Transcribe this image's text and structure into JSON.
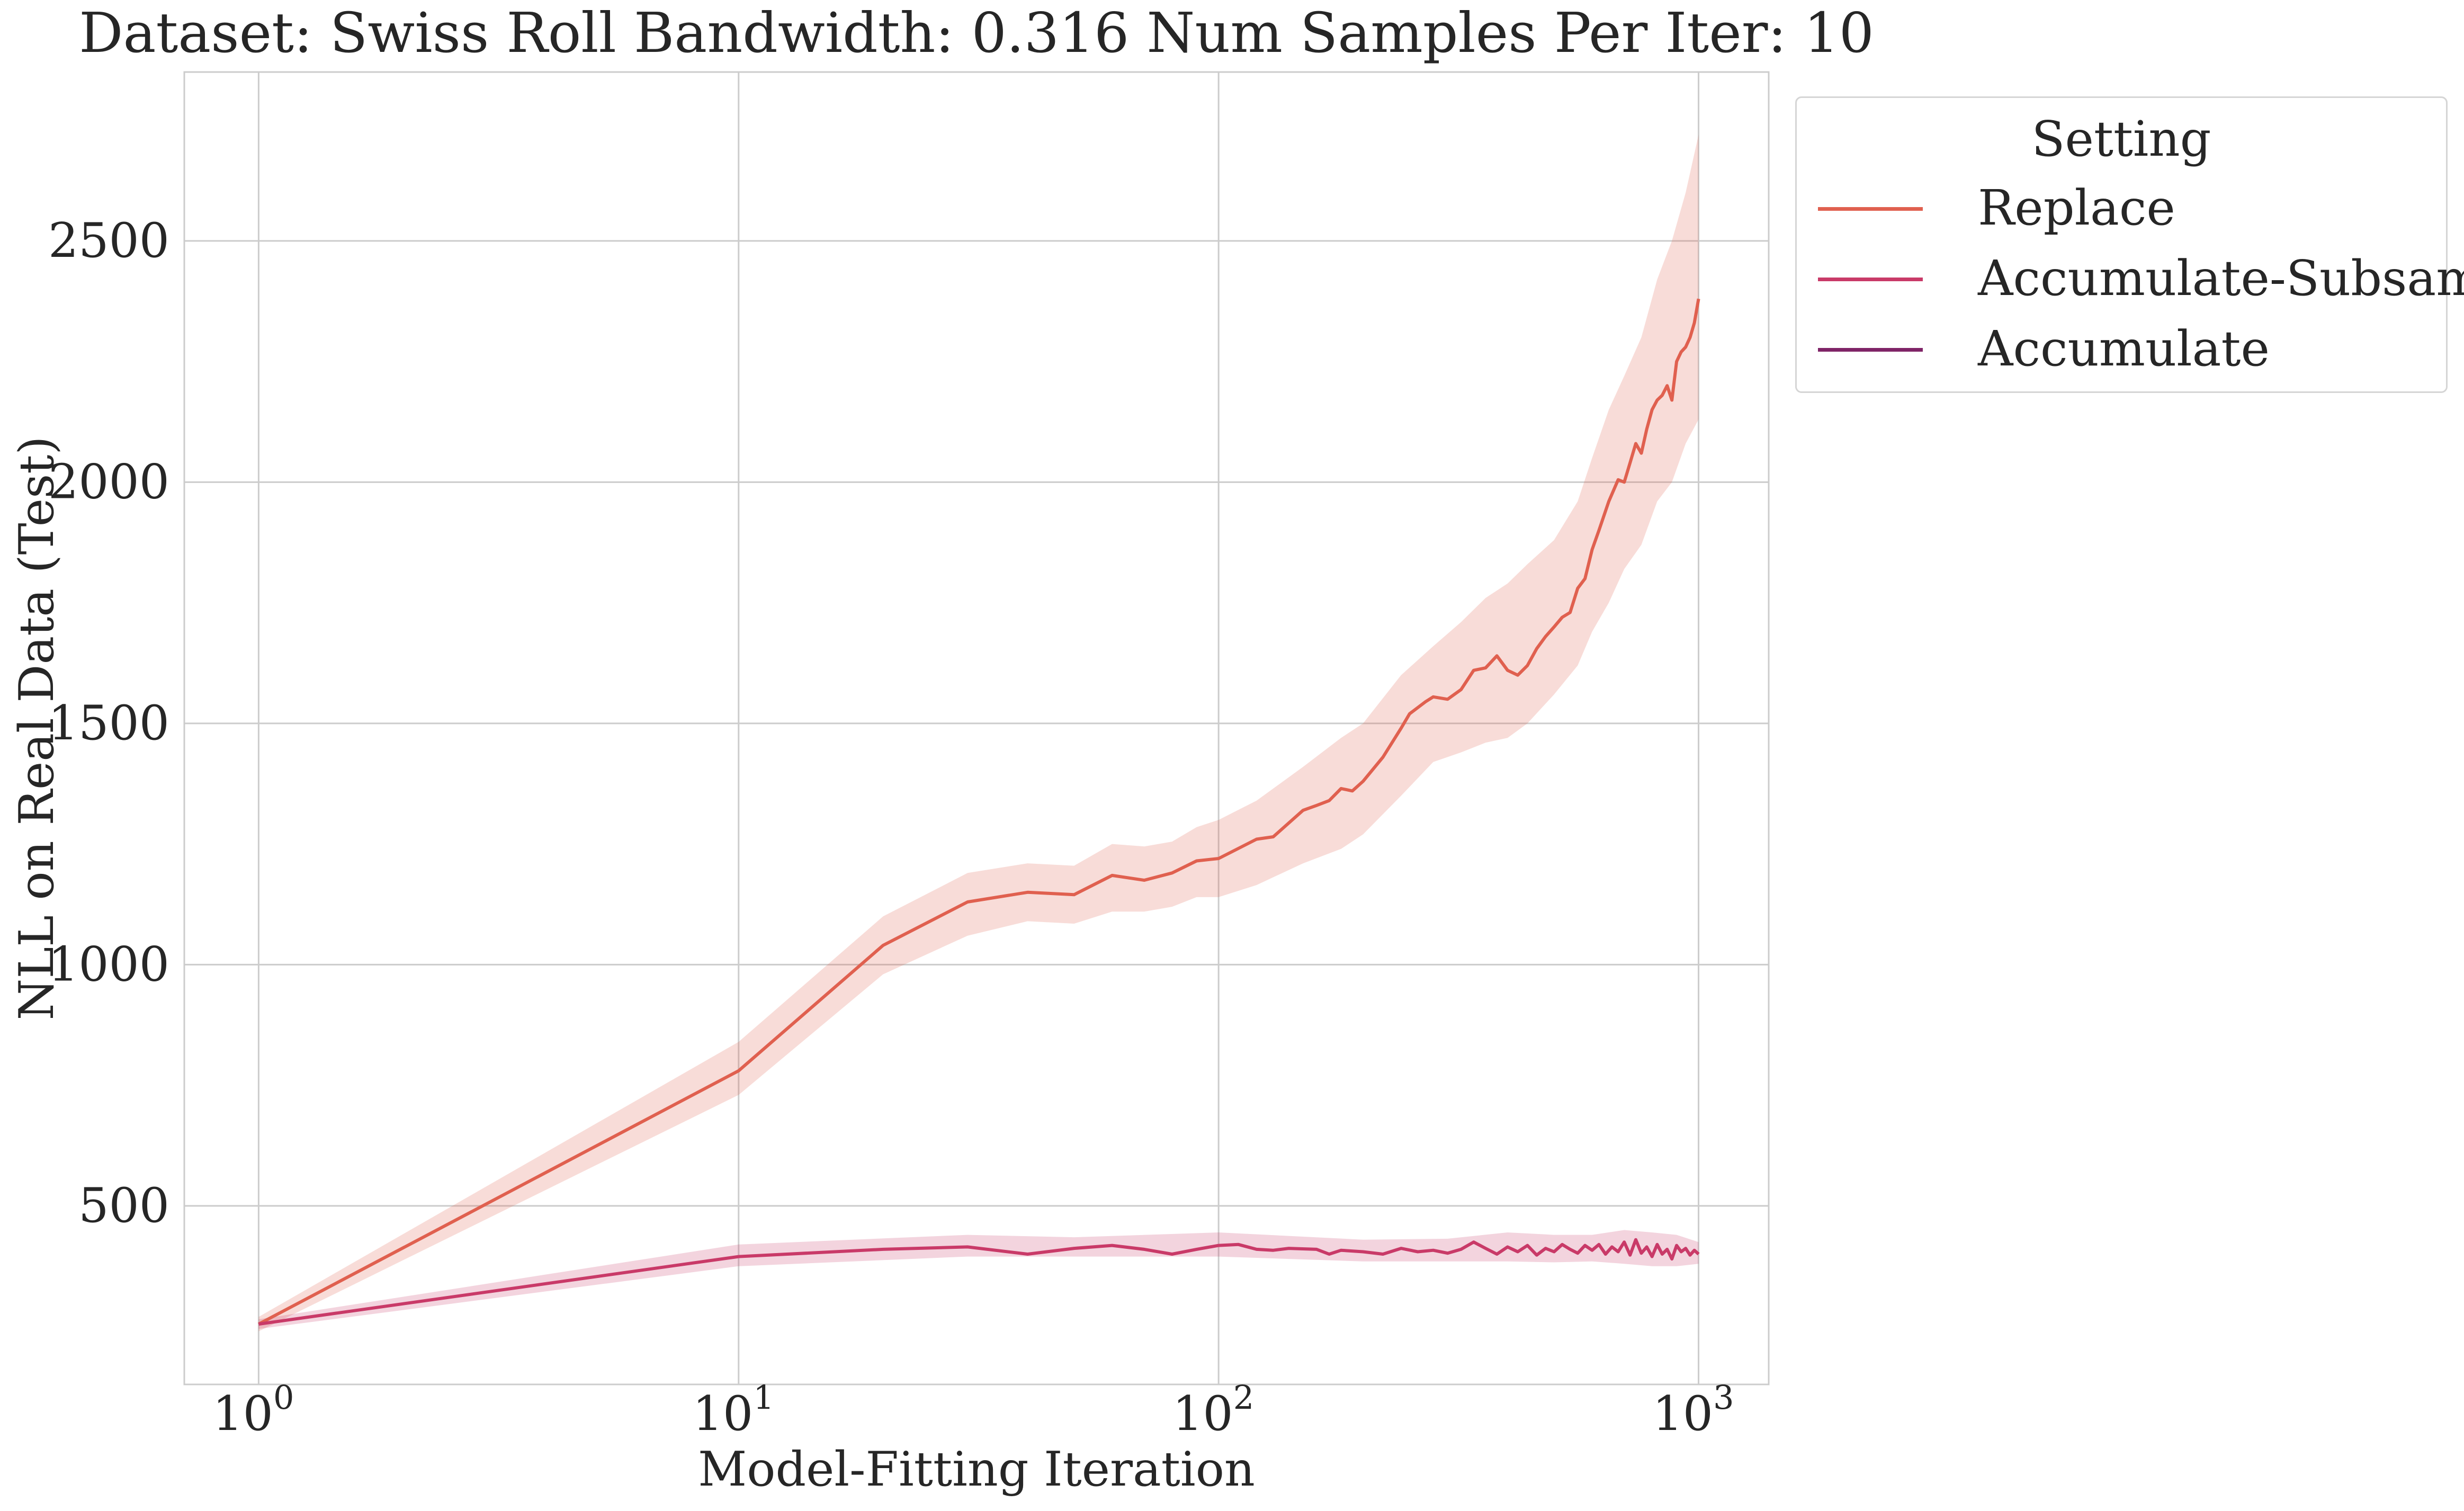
{
  "chart_data": {
    "type": "line",
    "title": "Dataset: Swiss Roll Bandwidth: 0.316 Num Samples Per Iter: 10",
    "xlabel": "Model-Fitting Iteration",
    "ylabel": "NLL on Real Data (Test)",
    "xscale": "log",
    "xlim": [
      0.7,
      1400
    ],
    "ylim": [
      130,
      2850
    ],
    "xticks": [
      1,
      10,
      100,
      1000
    ],
    "xtick_labels": [
      {
        "base": "10",
        "exp": "0"
      },
      {
        "base": "10",
        "exp": "1"
      },
      {
        "base": "10",
        "exp": "2"
      },
      {
        "base": "10",
        "exp": "3"
      }
    ],
    "yticks": [
      500,
      1000,
      1500,
      2000,
      2500
    ],
    "ytick_labels": [
      "500",
      "1000",
      "1500",
      "2000",
      "2500"
    ],
    "grid": true,
    "legend": {
      "title": "Setting",
      "placement": "outside-top-right"
    },
    "series": [
      {
        "name": "Replace",
        "color": "#e0604f",
        "points": [
          [
            1,
            255
          ],
          [
            10,
            780
          ],
          [
            20,
            1040
          ],
          [
            30,
            1130
          ],
          [
            40,
            1150
          ],
          [
            50,
            1145
          ],
          [
            60,
            1185
          ],
          [
            70,
            1175
          ],
          [
            80,
            1190
          ],
          [
            90,
            1215
          ],
          [
            100,
            1220
          ],
          [
            120,
            1260
          ],
          [
            130,
            1265
          ],
          [
            150,
            1320
          ],
          [
            160,
            1330
          ],
          [
            170,
            1340
          ],
          [
            180,
            1365
          ],
          [
            190,
            1360
          ],
          [
            200,
            1380
          ],
          [
            220,
            1430
          ],
          [
            240,
            1490
          ],
          [
            250,
            1520
          ],
          [
            270,
            1545
          ],
          [
            280,
            1555
          ],
          [
            300,
            1550
          ],
          [
            320,
            1570
          ],
          [
            340,
            1610
          ],
          [
            360,
            1615
          ],
          [
            380,
            1640
          ],
          [
            400,
            1610
          ],
          [
            420,
            1600
          ],
          [
            440,
            1620
          ],
          [
            460,
            1655
          ],
          [
            480,
            1680
          ],
          [
            500,
            1700
          ],
          [
            520,
            1720
          ],
          [
            540,
            1730
          ],
          [
            560,
            1780
          ],
          [
            580,
            1800
          ],
          [
            600,
            1860
          ],
          [
            620,
            1900
          ],
          [
            650,
            1960
          ],
          [
            680,
            2005
          ],
          [
            700,
            2000
          ],
          [
            720,
            2040
          ],
          [
            740,
            2080
          ],
          [
            760,
            2060
          ],
          [
            780,
            2110
          ],
          [
            800,
            2150
          ],
          [
            820,
            2170
          ],
          [
            840,
            2180
          ],
          [
            860,
            2200
          ],
          [
            880,
            2170
          ],
          [
            900,
            2250
          ],
          [
            920,
            2270
          ],
          [
            940,
            2280
          ],
          [
            960,
            2300
          ],
          [
            980,
            2330
          ],
          [
            1000,
            2380
          ]
        ],
        "band": [
          [
            1,
            240,
            270
          ],
          [
            10,
            730,
            840
          ],
          [
            20,
            980,
            1100
          ],
          [
            30,
            1060,
            1190
          ],
          [
            40,
            1090,
            1210
          ],
          [
            50,
            1085,
            1205
          ],
          [
            60,
            1110,
            1250
          ],
          [
            70,
            1110,
            1245
          ],
          [
            80,
            1120,
            1255
          ],
          [
            90,
            1140,
            1285
          ],
          [
            100,
            1140,
            1300
          ],
          [
            120,
            1165,
            1340
          ],
          [
            150,
            1210,
            1410
          ],
          [
            180,
            1240,
            1470
          ],
          [
            200,
            1270,
            1500
          ],
          [
            240,
            1350,
            1600
          ],
          [
            280,
            1420,
            1660
          ],
          [
            320,
            1440,
            1710
          ],
          [
            360,
            1460,
            1760
          ],
          [
            400,
            1470,
            1790
          ],
          [
            440,
            1500,
            1830
          ],
          [
            500,
            1560,
            1880
          ],
          [
            560,
            1620,
            1960
          ],
          [
            600,
            1690,
            2050
          ],
          [
            650,
            1750,
            2150
          ],
          [
            700,
            1820,
            2220
          ],
          [
            760,
            1870,
            2300
          ],
          [
            820,
            1960,
            2420
          ],
          [
            880,
            2000,
            2500
          ],
          [
            940,
            2080,
            2600
          ],
          [
            1000,
            2130,
            2720
          ]
        ]
      },
      {
        "name": "Accumulate-Subsample",
        "color": "#c93a68",
        "points": [
          [
            1,
            255
          ],
          [
            10,
            395
          ],
          [
            20,
            410
          ],
          [
            30,
            415
          ],
          [
            40,
            400
          ],
          [
            50,
            412
          ],
          [
            60,
            418
          ],
          [
            70,
            410
          ],
          [
            80,
            400
          ],
          [
            90,
            410
          ],
          [
            100,
            418
          ],
          [
            110,
            420
          ],
          [
            120,
            410
          ],
          [
            130,
            408
          ],
          [
            140,
            412
          ],
          [
            160,
            410
          ],
          [
            170,
            400
          ],
          [
            180,
            408
          ],
          [
            200,
            405
          ],
          [
            220,
            400
          ],
          [
            240,
            412
          ],
          [
            260,
            405
          ],
          [
            280,
            408
          ],
          [
            300,
            402
          ],
          [
            320,
            410
          ],
          [
            340,
            425
          ],
          [
            360,
            412
          ],
          [
            380,
            400
          ],
          [
            400,
            415
          ],
          [
            420,
            405
          ],
          [
            440,
            418
          ],
          [
            460,
            398
          ],
          [
            480,
            412
          ],
          [
            500,
            405
          ],
          [
            520,
            420
          ],
          [
            540,
            410
          ],
          [
            560,
            402
          ],
          [
            580,
            418
          ],
          [
            600,
            408
          ],
          [
            620,
            420
          ],
          [
            640,
            400
          ],
          [
            660,
            415
          ],
          [
            680,
            405
          ],
          [
            700,
            425
          ],
          [
            720,
            398
          ],
          [
            740,
            430
          ],
          [
            760,
            402
          ],
          [
            780,
            415
          ],
          [
            800,
            395
          ],
          [
            820,
            420
          ],
          [
            840,
            400
          ],
          [
            860,
            410
          ],
          [
            880,
            390
          ],
          [
            900,
            418
          ],
          [
            920,
            405
          ],
          [
            940,
            412
          ],
          [
            960,
            398
          ],
          [
            980,
            408
          ],
          [
            1000,
            400
          ]
        ],
        "band": [
          [
            1,
            245,
            265
          ],
          [
            10,
            375,
            420
          ],
          [
            30,
            395,
            440
          ],
          [
            50,
            395,
            435
          ],
          [
            100,
            395,
            445
          ],
          [
            200,
            385,
            430
          ],
          [
            300,
            385,
            432
          ],
          [
            400,
            385,
            445
          ],
          [
            500,
            383,
            440
          ],
          [
            600,
            385,
            440
          ],
          [
            700,
            380,
            450
          ],
          [
            800,
            375,
            445
          ],
          [
            900,
            375,
            440
          ],
          [
            1000,
            380,
            425
          ]
        ]
      },
      {
        "name": "Accumulate",
        "color": "#7f2467",
        "points": []
      }
    ]
  }
}
